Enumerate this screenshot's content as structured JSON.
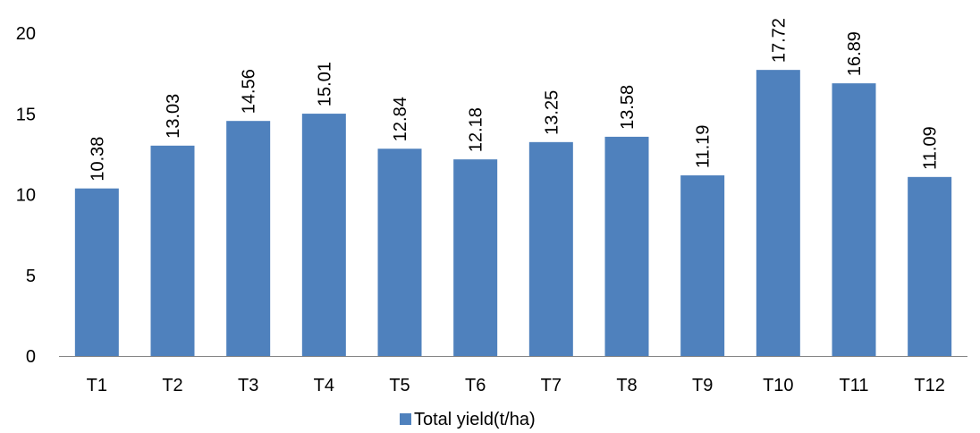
{
  "chart_data": {
    "type": "bar",
    "categories": [
      "T1",
      "T2",
      "T3",
      "T4",
      "T5",
      "T6",
      "T7",
      "T8",
      "T9",
      "T10",
      "T11",
      "T12"
    ],
    "series": [
      {
        "name": "Total yield(t/ha)",
        "color": "#4F81BD",
        "values": [
          10.38,
          13.03,
          14.56,
          15.01,
          12.84,
          12.18,
          13.25,
          13.58,
          11.19,
          17.72,
          16.89,
          11.09
        ]
      }
    ],
    "data_labels": [
      "10.38",
      "13.03",
      "14.56",
      "15.01",
      "12.84",
      "12.18",
      "13.25",
      "13.58",
      "11.19",
      "17.72",
      "16.89",
      "11.09"
    ],
    "y_ticks": [
      "0",
      "5",
      "10",
      "15",
      "20"
    ],
    "y_tick_values": [
      0,
      5,
      10,
      15,
      20
    ],
    "ylim": [
      0,
      20
    ],
    "title": "",
    "xlabel": "",
    "ylabel": "",
    "grid": false,
    "legend_position": "bottom",
    "axis_color": "#868686"
  }
}
